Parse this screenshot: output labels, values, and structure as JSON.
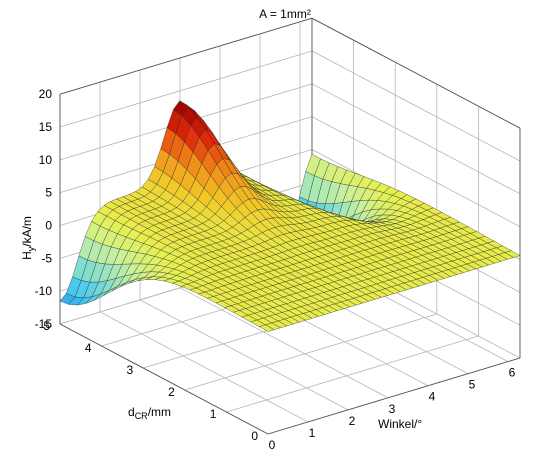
{
  "chart_data": {
    "type": "surface",
    "title": "A = 1mm²",
    "xlabel": "Winkel/°",
    "ylabel": "d",
    "ylabel_sub": "CR",
    "ylabel_unit": "/mm",
    "zlabel": "H",
    "zlabel_sub": "y",
    "zlabel_unit": "/kA/m",
    "xlim": [
      0,
      6
    ],
    "ylim": [
      0,
      5
    ],
    "zlim": [
      -15,
      20
    ],
    "xticks": [
      "0",
      "1",
      "2",
      "3",
      "4",
      "5",
      "6"
    ],
    "yticks": [
      "0",
      "1",
      "2",
      "3",
      "4",
      "5"
    ],
    "zticks": [
      "-15",
      "-10",
      "-5",
      "0",
      "5",
      "10",
      "15",
      "20"
    ],
    "grid": true,
    "colormap": [
      "#00006a",
      "#0a3cc8",
      "#1e90e6",
      "#46c8f0",
      "#8ce0c8",
      "#c8f0a0",
      "#e6f050",
      "#f0c828",
      "#f08c19",
      "#e0280a",
      "#960000"
    ],
    "surface": {
      "x_range": [
        0,
        6.3
      ],
      "y_range": [
        0,
        5
      ],
      "baseline": 1.5,
      "features": [
        {
          "type": "valley",
          "x": 0.0,
          "y": 5.0,
          "amplitude": -13.0
        },
        {
          "type": "peak",
          "x": 3.0,
          "y": 5.0,
          "amplitude": 12.0
        },
        {
          "type": "valley",
          "x": 5.4,
          "y": 5.0,
          "amplitude": -21.0
        }
      ]
    },
    "edge_line_color": "#1e1e1e"
  }
}
